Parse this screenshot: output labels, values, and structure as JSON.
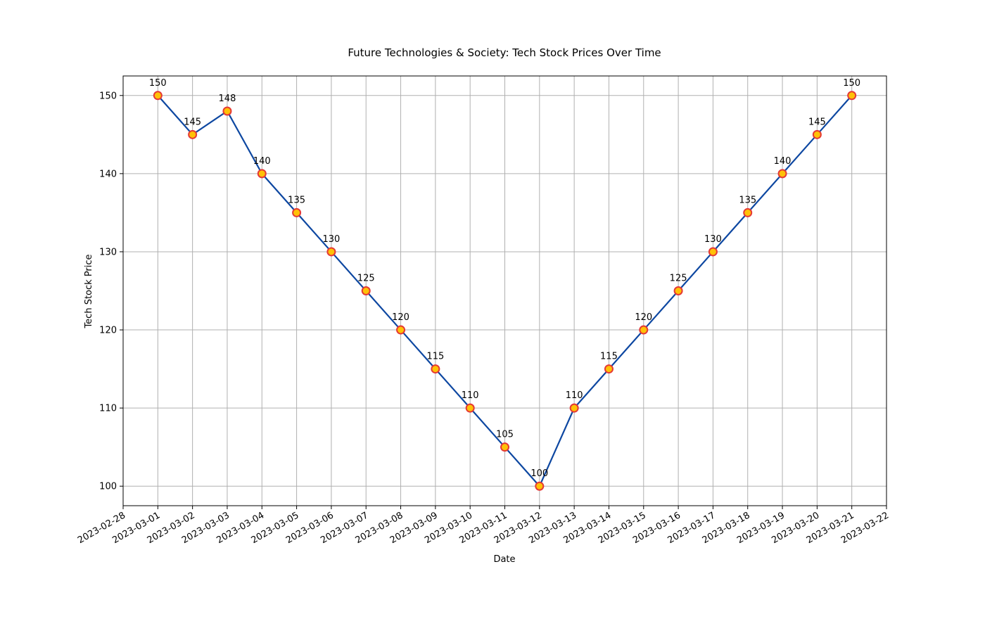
{
  "chart_data": {
    "type": "line",
    "title": "Future Technologies & Society: Tech Stock Prices Over Time",
    "xlabel": "Date",
    "ylabel": "Tech Stock Price",
    "x": [
      "2023-03-01",
      "2023-03-02",
      "2023-03-03",
      "2023-03-04",
      "2023-03-05",
      "2023-03-06",
      "2023-03-07",
      "2023-03-08",
      "2023-03-09",
      "2023-03-10",
      "2023-03-11",
      "2023-03-12",
      "2023-03-13",
      "2023-03-14",
      "2023-03-15",
      "2023-03-16",
      "2023-03-17",
      "2023-03-18",
      "2023-03-19",
      "2023-03-20",
      "2023-03-21"
    ],
    "series": [
      {
        "values": [
          150,
          145,
          148,
          140,
          135,
          130,
          125,
          120,
          115,
          110,
          105,
          100,
          110,
          115,
          120,
          125,
          130,
          135,
          140,
          145,
          150
        ]
      }
    ],
    "x_ticks": [
      "2023-02-28",
      "2023-03-01",
      "2023-03-02",
      "2023-03-03",
      "2023-03-04",
      "2023-03-05",
      "2023-03-06",
      "2023-03-07",
      "2023-03-08",
      "2023-03-09",
      "2023-03-10",
      "2023-03-11",
      "2023-03-12",
      "2023-03-13",
      "2023-03-14",
      "2023-03-15",
      "2023-03-16",
      "2023-03-17",
      "2023-03-18",
      "2023-03-19",
      "2023-03-20",
      "2023-03-21",
      "2023-03-22"
    ],
    "y_ticks": [
      100,
      110,
      120,
      130,
      140,
      150
    ],
    "xlim": [
      "2023-02-28",
      "2023-03-22"
    ],
    "ylim": [
      97.5,
      152.5
    ],
    "grid": true,
    "data_labels": true,
    "colors": {
      "line": "#0d47a1",
      "marker_fill": "#ffc107",
      "marker_edge": "#e53935"
    }
  }
}
